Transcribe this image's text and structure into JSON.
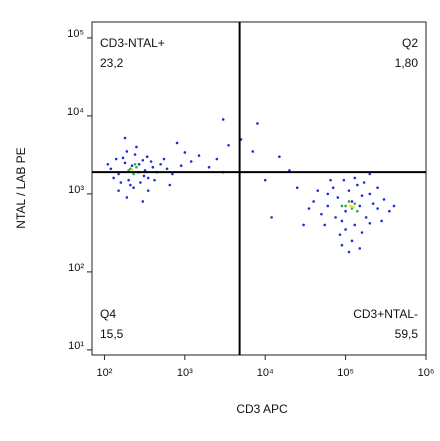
{
  "chart_data": {
    "type": "scatter",
    "x_label": "CD3 APC",
    "y_label": "NTAL / LAB PE",
    "log_x": true,
    "log_y": true,
    "xlim": [
      70,
      1000000
    ],
    "ylim": [
      8.6,
      160000
    ],
    "xticks": [
      {
        "value": 100,
        "label": "10²"
      },
      {
        "value": 1000,
        "label": "10³"
      },
      {
        "value": 10000,
        "label": "10⁴"
      },
      {
        "value": 100000,
        "label": "10⁵"
      },
      {
        "value": 1000000,
        "label": "10⁶"
      }
    ],
    "yticks": [
      {
        "value": 10,
        "label": "10¹"
      },
      {
        "value": 100,
        "label": "10²"
      },
      {
        "value": 1000,
        "label": "10³"
      },
      {
        "value": 10000,
        "label": "10⁴"
      },
      {
        "value": 100000,
        "label": "10⁵"
      }
    ],
    "gates": {
      "x": 4800,
      "y": 1900
    },
    "quadrants": [
      {
        "name": "CD3-NTAL+",
        "percent": "23,2"
      },
      {
        "name": "Q2",
        "percent": "1,80"
      },
      {
        "name": "Q4",
        "percent": "15,5"
      },
      {
        "name": "CD3+NTAL-",
        "percent": "59,5"
      }
    ],
    "series": [
      {
        "color": "#1b2fd6",
        "x": [
          120,
          150,
          180,
          200,
          220,
          260,
          300,
          350,
          400,
          450,
          130,
          170,
          210,
          240,
          280,
          320,
          380,
          500,
          600,
          700,
          110,
          140,
          160,
          190,
          230,
          270,
          310,
          340,
          420,
          550,
          900,
          1200,
          1500,
          2000,
          2500,
          3000,
          3500,
          800,
          250,
          150,
          190,
          350,
          650,
          1000,
          180,
          300,
          60000,
          80000,
          100000,
          120000,
          150000,
          180000,
          200000,
          250000,
          70000,
          90000,
          110000,
          130000,
          160000,
          220000,
          300000,
          50000,
          40000,
          350000,
          140000,
          100000,
          85000,
          120000,
          160000,
          200000,
          60000,
          75000,
          95000,
          130000,
          170000,
          250000,
          280000,
          45000,
          55000,
          150000,
          110000,
          90000,
          400000,
          35000,
          200000,
          65000,
          5000,
          8000,
          10000,
          15000,
          20000,
          3000,
          12000,
          25000,
          7000,
          30000
        ],
        "y": [
          2100,
          1800,
          2500,
          1500,
          2300,
          1900,
          2700,
          1600,
          2200,
          1900,
          1600,
          2900,
          1300,
          3200,
          1400,
          2000,
          2600,
          2400,
          2100,
          1800,
          2400,
          2800,
          1400,
          3500,
          1200,
          2400,
          1700,
          3000,
          1500,
          2800,
          2300,
          2600,
          3100,
          2200,
          2800,
          1900,
          4200,
          4500,
          4000,
          1100,
          900,
          1100,
          1300,
          3400,
          5200,
          800,
          700,
          900,
          600,
          800,
          700,
          500,
          1000,
          650,
          1200,
          450,
          1100,
          400,
          950,
          750,
          850,
          550,
          800,
          600,
          1300,
          350,
          300,
          250,
          320,
          420,
          1000,
          500,
          1500,
          1600,
          1400,
          1200,
          450,
          1100,
          400,
          200,
          180,
          220,
          700,
          650,
          1800,
          1500,
          5000,
          8000,
          1500,
          3000,
          2000,
          9000,
          500,
          1200,
          3500,
          400
        ]
      },
      {
        "color": "#2fa84a",
        "x": [
          200,
          230,
          250,
          210,
          270,
          240,
          100000,
          120000,
          130000,
          110000,
          90000,
          140000
        ],
        "y": [
          2000,
          1800,
          2200,
          2100,
          1900,
          2400,
          700,
          650,
          750,
          800,
          700,
          600
        ]
      },
      {
        "color": "#e8d81c",
        "x": [
          220,
          115000,
          125000
        ],
        "y": [
          2050,
          700,
          680
        ]
      }
    ]
  }
}
